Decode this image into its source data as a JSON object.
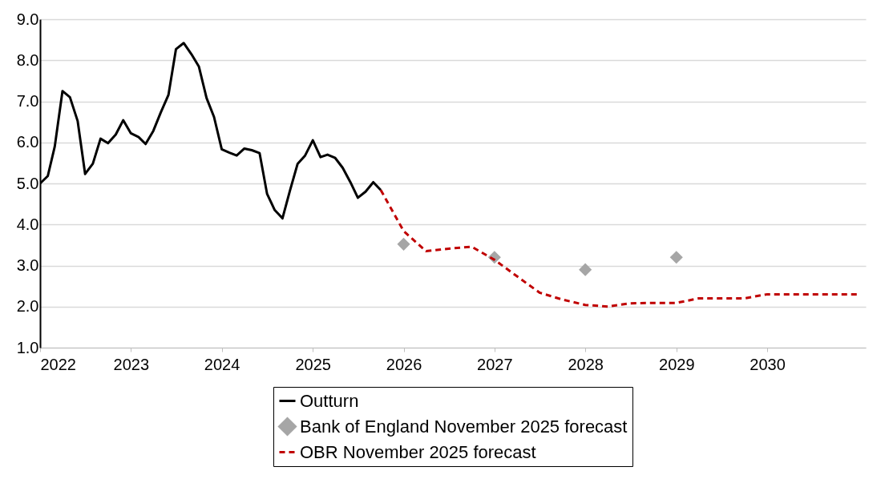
{
  "chart_data": {
    "type": "line",
    "xlim": [
      "2022-01",
      "2031-02"
    ],
    "xticks": [
      "2022",
      "2023",
      "2024",
      "2025",
      "2026",
      "2027",
      "2028",
      "2029",
      "2030"
    ],
    "ylim": [
      1,
      9
    ],
    "yticks": [
      {
        "value": 1,
        "label": "1.0"
      },
      {
        "value": 2,
        "label": "2.0"
      },
      {
        "value": 3,
        "label": "3.0"
      },
      {
        "value": 4,
        "label": "4.0"
      },
      {
        "value": 5,
        "label": "5.0"
      },
      {
        "value": 6,
        "label": "6.0"
      },
      {
        "value": 7,
        "label": "7.0"
      },
      {
        "value": 8,
        "label": "8.0"
      },
      {
        "value": 9,
        "label": "9.0"
      }
    ],
    "grid": "y",
    "legend": "bottom",
    "series": [
      {
        "name": "Outturn",
        "color": "#000000",
        "line_style": "solid",
        "x": [
          "2022-01",
          "2022-02",
          "2022-03",
          "2022-04",
          "2022-05",
          "2022-06",
          "2022-07",
          "2022-08",
          "2022-09",
          "2022-10",
          "2022-11",
          "2022-12",
          "2023-01",
          "2023-02",
          "2023-03",
          "2023-04",
          "2023-05",
          "2023-06",
          "2023-07",
          "2023-08",
          "2023-09",
          "2023-10",
          "2023-11",
          "2023-12",
          "2024-01",
          "2024-02",
          "2024-03",
          "2024-04",
          "2024-05",
          "2024-06",
          "2024-07",
          "2024-08",
          "2024-09",
          "2024-10",
          "2024-11",
          "2024-12",
          "2025-01",
          "2025-02",
          "2025-03",
          "2025-04",
          "2025-05",
          "2025-06",
          "2025-07",
          "2025-08",
          "2025-09",
          "2025-10"
        ],
        "values": [
          5.0,
          5.18,
          5.9,
          7.25,
          7.1,
          6.52,
          5.23,
          5.48,
          6.09,
          5.98,
          6.19,
          6.54,
          6.22,
          6.13,
          5.96,
          6.28,
          6.73,
          7.16,
          8.27,
          8.42,
          8.15,
          7.85,
          7.08,
          6.62,
          5.83,
          5.75,
          5.68,
          5.85,
          5.81,
          5.74,
          4.75,
          4.35,
          4.15,
          4.82,
          5.48,
          5.68,
          6.05,
          5.64,
          5.7,
          5.62,
          5.38,
          5.03,
          4.65,
          4.8,
          5.03,
          4.84
        ]
      },
      {
        "name": "Bank of England November 2025 forecast",
        "type": "scatter",
        "color": "#a6a6a6",
        "marker": "diamond",
        "x": [
          "2026-01",
          "2027-01",
          "2028-01",
          "2029-01"
        ],
        "values": [
          3.52,
          3.2,
          2.9,
          3.2
        ]
      },
      {
        "name": "OBR November 2025 forecast",
        "color": "#c00000",
        "line_style": "dashed",
        "x": [
          "2025-10",
          "2026-01",
          "2026-04",
          "2026-07",
          "2026-10",
          "2027-01",
          "2027-04",
          "2027-07",
          "2027-10",
          "2028-01",
          "2028-04",
          "2028-07",
          "2028-10",
          "2029-01",
          "2029-04",
          "2029-07",
          "2029-10",
          "2030-01",
          "2030-04",
          "2030-07",
          "2030-10",
          "2031-01"
        ],
        "values": [
          4.84,
          3.84,
          3.35,
          3.41,
          3.46,
          3.14,
          2.74,
          2.34,
          2.17,
          2.04,
          2.0,
          2.08,
          2.09,
          2.09,
          2.2,
          2.2,
          2.2,
          2.3,
          2.3,
          2.3,
          2.3,
          2.3
        ]
      }
    ]
  }
}
